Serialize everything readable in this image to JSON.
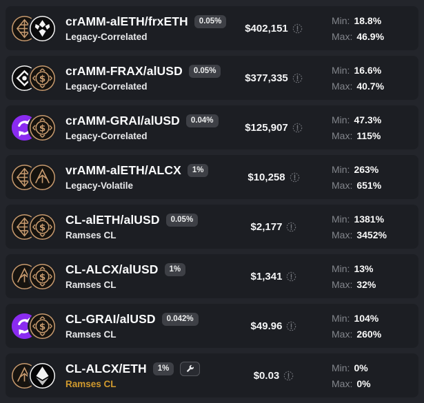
{
  "page": {
    "bg_color": "#23252b",
    "card_color": "#1c1e23",
    "gold_color": "#d19a2e"
  },
  "apr_labels": {
    "min": "Min:",
    "max": "Max:"
  },
  "token_icons": {
    "alETH": {
      "glyph": "aleth-sigil-icon",
      "bg": "#16130f",
      "ring": "#c89b6f",
      "color": "#c89b6f"
    },
    "frxETH": {
      "glyph": "frxeth-mark-icon",
      "bg": "#0b0b0c",
      "ring": "#f4f4f4",
      "color": "#f4f4f4"
    },
    "FRAX": {
      "glyph": "frax-mark-icon",
      "bg": "#0b0b0c",
      "ring": "#f4f4f4",
      "color": "#f4f4f4"
    },
    "alUSD": {
      "glyph": "alusd-dollar-icon",
      "bg": "#16130f",
      "ring": "#c89b6f",
      "color": "#c89b6f"
    },
    "GRAI": {
      "glyph": "grai-swap-icon",
      "bg": "#8a2bf0",
      "ring": "#8a2bf0",
      "color": "#ffffff"
    },
    "ALCX": {
      "glyph": "alcx-mark-icon",
      "bg": "#16130f",
      "ring": "#c89b6f",
      "color": "#c89b6f"
    },
    "ETH": {
      "glyph": "eth-diamond-icon",
      "bg": "#060607",
      "ring": "#f4f4f4",
      "color": "#ffffff"
    }
  },
  "rows": [
    {
      "pair": "crAMM-alETH/frxETH",
      "fee": "0.05%",
      "subtitle": "Legacy-Correlated",
      "subtitle_gold": false,
      "tokens": [
        "alETH",
        "frxETH"
      ],
      "tvl": "$402,151",
      "min": "18.8%",
      "max": "46.9%",
      "wrench": false
    },
    {
      "pair": "crAMM-FRAX/alUSD",
      "fee": "0.05%",
      "subtitle": "Legacy-Correlated",
      "subtitle_gold": false,
      "tokens": [
        "FRAX",
        "alUSD"
      ],
      "tvl": "$377,335",
      "min": "16.6%",
      "max": "40.7%",
      "wrench": false
    },
    {
      "pair": "crAMM-GRAI/alUSD",
      "fee": "0.04%",
      "subtitle": "Legacy-Correlated",
      "subtitle_gold": false,
      "tokens": [
        "GRAI",
        "alUSD"
      ],
      "tvl": "$125,907",
      "min": "47.3%",
      "max": "115%",
      "wrench": false
    },
    {
      "pair": "vrAMM-alETH/ALCX",
      "fee": "1%",
      "subtitle": "Legacy-Volatile",
      "subtitle_gold": false,
      "tokens": [
        "alETH",
        "ALCX"
      ],
      "tvl": "$10,258",
      "min": "263%",
      "max": "651%",
      "wrench": false
    },
    {
      "pair": "CL-alETH/alUSD",
      "fee": "0.05%",
      "subtitle": "Ramses CL",
      "subtitle_gold": false,
      "tokens": [
        "alETH",
        "alUSD"
      ],
      "tvl": "$2,177",
      "min": "1381%",
      "max": "3452%",
      "wrench": false
    },
    {
      "pair": "CL-ALCX/alUSD",
      "fee": "1%",
      "subtitle": "Ramses CL",
      "subtitle_gold": false,
      "tokens": [
        "ALCX",
        "alUSD"
      ],
      "tvl": "$1,341",
      "min": "13%",
      "max": "32%",
      "wrench": false
    },
    {
      "pair": "CL-GRAI/alUSD",
      "fee": "0.042%",
      "subtitle": "Ramses CL",
      "subtitle_gold": false,
      "tokens": [
        "GRAI",
        "alUSD"
      ],
      "tvl": "$49.96",
      "min": "104%",
      "max": "260%",
      "wrench": false
    },
    {
      "pair": "CL-ALCX/ETH",
      "fee": "1%",
      "subtitle": "Ramses CL",
      "subtitle_gold": true,
      "tokens": [
        "ALCX",
        "ETH"
      ],
      "tvl": "$0.03",
      "min": "0%",
      "max": "0%",
      "wrench": true
    }
  ]
}
